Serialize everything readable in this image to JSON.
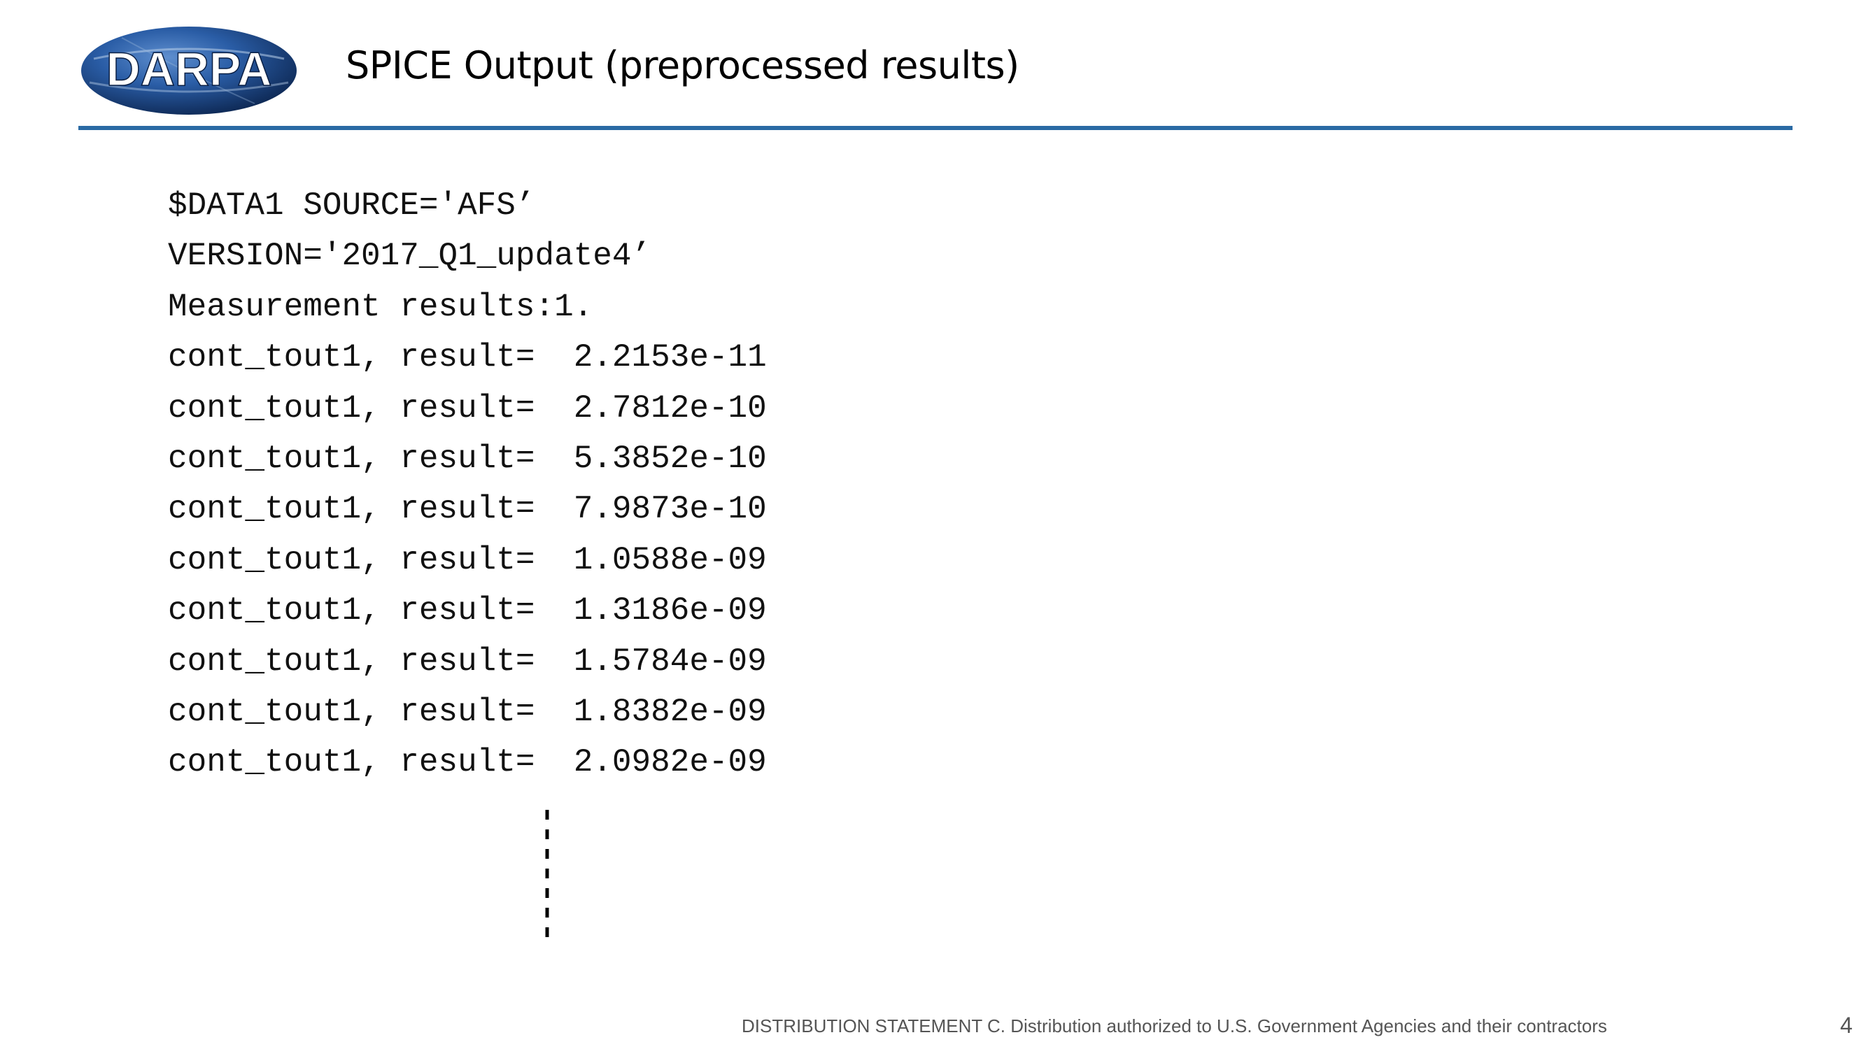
{
  "header": {
    "logo_text": "DARPA",
    "title": "SPICE Output (preprocessed results)"
  },
  "colors": {
    "rule": "#2a6aa4",
    "logo_fill": "#1a3f7a"
  },
  "output_lines": [
    "$DATA1 SOURCE='AFS’",
    "VERSION='2017_Q1_update4’",
    "Measurement results:1.",
    "cont_tout1, result=  2.2153e-11",
    "cont_tout1, result=  2.7812e-10",
    "cont_tout1, result=  5.3852e-10",
    "cont_tout1, result=  7.9873e-10",
    "cont_tout1, result=  1.0588e-09",
    "cont_tout1, result=  1.3186e-09",
    "cont_tout1, result=  1.5784e-09",
    "cont_tout1, result=  1.8382e-09",
    "cont_tout1, result=  2.0982e-09"
  ],
  "footer": {
    "distribution": "DISTRIBUTION STATEMENT C. Distribution authorized to U.S. Government Agencies and their contractors",
    "page_number": "4"
  }
}
